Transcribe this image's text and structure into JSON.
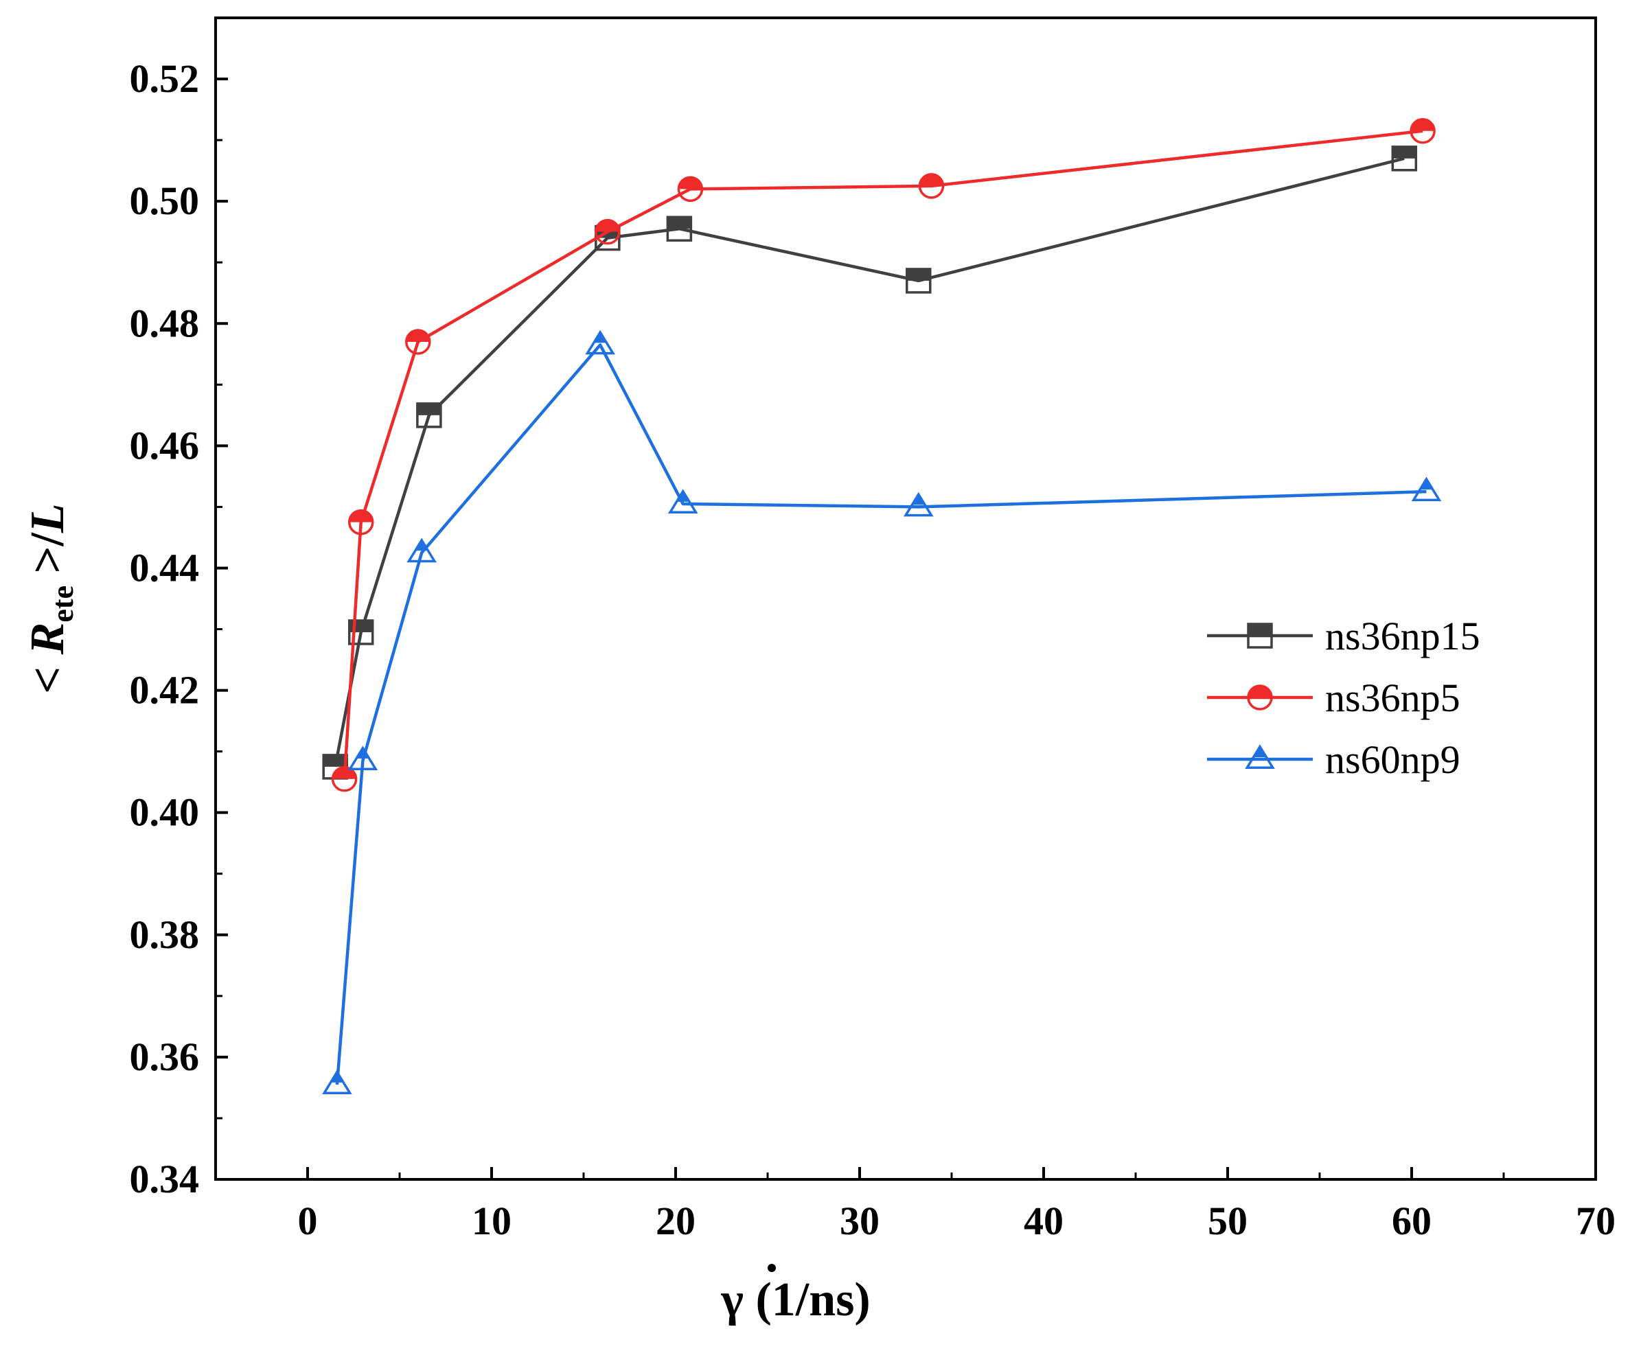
{
  "chart_data": {
    "type": "line",
    "title": "",
    "xlabel": {
      "symbol": "γ",
      "unit": " (1/ns)"
    },
    "ylabel": {
      "left": "< ",
      "symbol": "R",
      "subscript": "ete",
      "right": " >/",
      "denominator": "L"
    },
    "xlim": [
      -5,
      70
    ],
    "ylim": [
      0.34,
      0.53
    ],
    "xticks": [
      0,
      10,
      20,
      30,
      40,
      50,
      60,
      70
    ],
    "yticks": [
      0.34,
      0.36,
      0.38,
      0.4,
      0.42,
      0.44,
      0.46,
      0.48,
      0.5,
      0.52
    ],
    "ytick_labels": [
      "0.34",
      "0.36",
      "0.38",
      "0.40",
      "0.42",
      "0.44",
      "0.46",
      "0.48",
      "0.50",
      "0.52"
    ],
    "grid": false,
    "legend_position": "right",
    "series": [
      {
        "name": "ns36np15",
        "color": "#404040",
        "marker": "square",
        "x": [
          1.5,
          2.9,
          6.6,
          16.3,
          20.2,
          33.2,
          59.6
        ],
        "y": [
          0.4075,
          0.4295,
          0.465,
          0.494,
          0.4955,
          0.487,
          0.507
        ]
      },
      {
        "name": "ns36np5",
        "color": "#ee2a2a",
        "marker": "circle",
        "x": [
          2.0,
          2.9,
          6.0,
          16.3,
          20.8,
          33.9,
          60.6
        ],
        "y": [
          0.4055,
          0.4475,
          0.477,
          0.495,
          0.502,
          0.5025,
          0.5115
        ]
      },
      {
        "name": "ns60np9",
        "color": "#1e6fe0",
        "marker": "triangle",
        "x": [
          1.6,
          3.0,
          6.2,
          15.9,
          20.4,
          33.2,
          60.8
        ],
        "y": [
          0.3555,
          0.4085,
          0.4425,
          0.4765,
          0.4505,
          0.45,
          0.4525
        ]
      }
    ]
  }
}
